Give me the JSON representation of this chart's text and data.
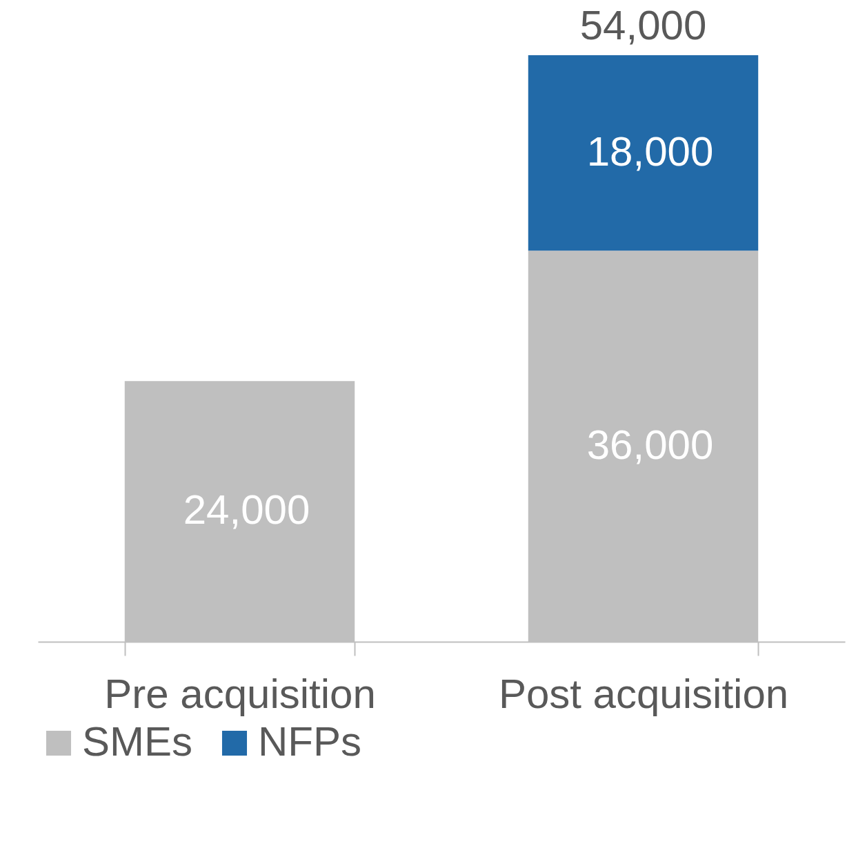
{
  "chart_data": {
    "type": "bar",
    "stacked": true,
    "categories": [
      "Pre acquisition",
      "Post acquisition"
    ],
    "series": [
      {
        "name": "SMEs",
        "color": "#bfbfbf",
        "values": [
          24000,
          36000
        ],
        "value_labels": [
          "24,000",
          "36,000"
        ]
      },
      {
        "name": "NFPs",
        "color": "#226aa8",
        "values": [
          null,
          18000
        ],
        "value_labels": [
          null,
          "18,000"
        ]
      }
    ],
    "totals": [
      null,
      "54,000"
    ],
    "ylim": [
      0,
      54000
    ],
    "tick_labels": "x",
    "grid": false,
    "legend": "bottom"
  }
}
